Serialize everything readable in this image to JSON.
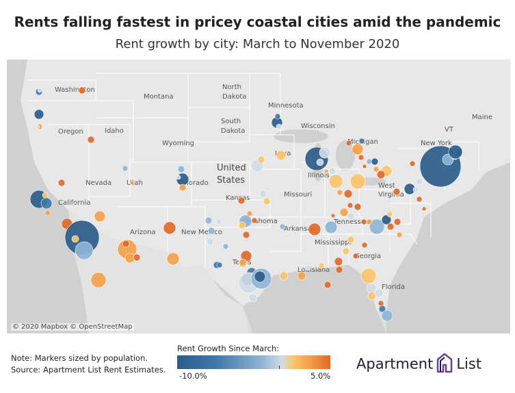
{
  "title": "Rents falling fastest in pricey coastal cities amid the pandemic",
  "subtitle": "Rent growth by city: March to November 2020",
  "map_attribution": "© 2020 Mapbox © OpenStreetMap",
  "map_labels": {
    "country": [
      "United",
      "States"
    ],
    "states": [
      "Washington",
      "Montana",
      "North",
      "Dakota",
      "Minnesota",
      "Oregon",
      "Idaho",
      "South",
      "Dakota",
      "Wisconsin",
      "Wyoming",
      "Michigan",
      "New York",
      "Maine",
      "VT",
      "Iowa",
      "Nevada",
      "Utah",
      "Colorado",
      "Illinois",
      "West",
      "Virginia",
      "California",
      "Missouri",
      "Kansas",
      "Oklahoma",
      "Arizona",
      "New Mexico",
      "Arkansas",
      "Tennessee",
      "Mississippi",
      "Texas",
      "Georgia",
      "Louisiana",
      "Florida"
    ]
  },
  "legend": {
    "title": "Rent Growth Since March:",
    "min_label": "-10.0%",
    "max_label": "5.0%",
    "min_value": -10.0,
    "max_value": 5.0,
    "colors": [
      "#2b5c8a",
      "#3f78a8",
      "#8db4d4",
      "#cfdbe6",
      "#fbc36a",
      "#f3a14a",
      "#e0692a"
    ]
  },
  "note_lines": [
    "Note: Markers sized by population.",
    "Source: Apartment List Rent Estimates."
  ],
  "logo": {
    "left": "Apartment",
    "right": "List",
    "color": "#1d1d3a"
  },
  "map_colors": {
    "land": "#e6e6e6",
    "water": "#c8c8c8",
    "border": "#ffffff"
  }
}
